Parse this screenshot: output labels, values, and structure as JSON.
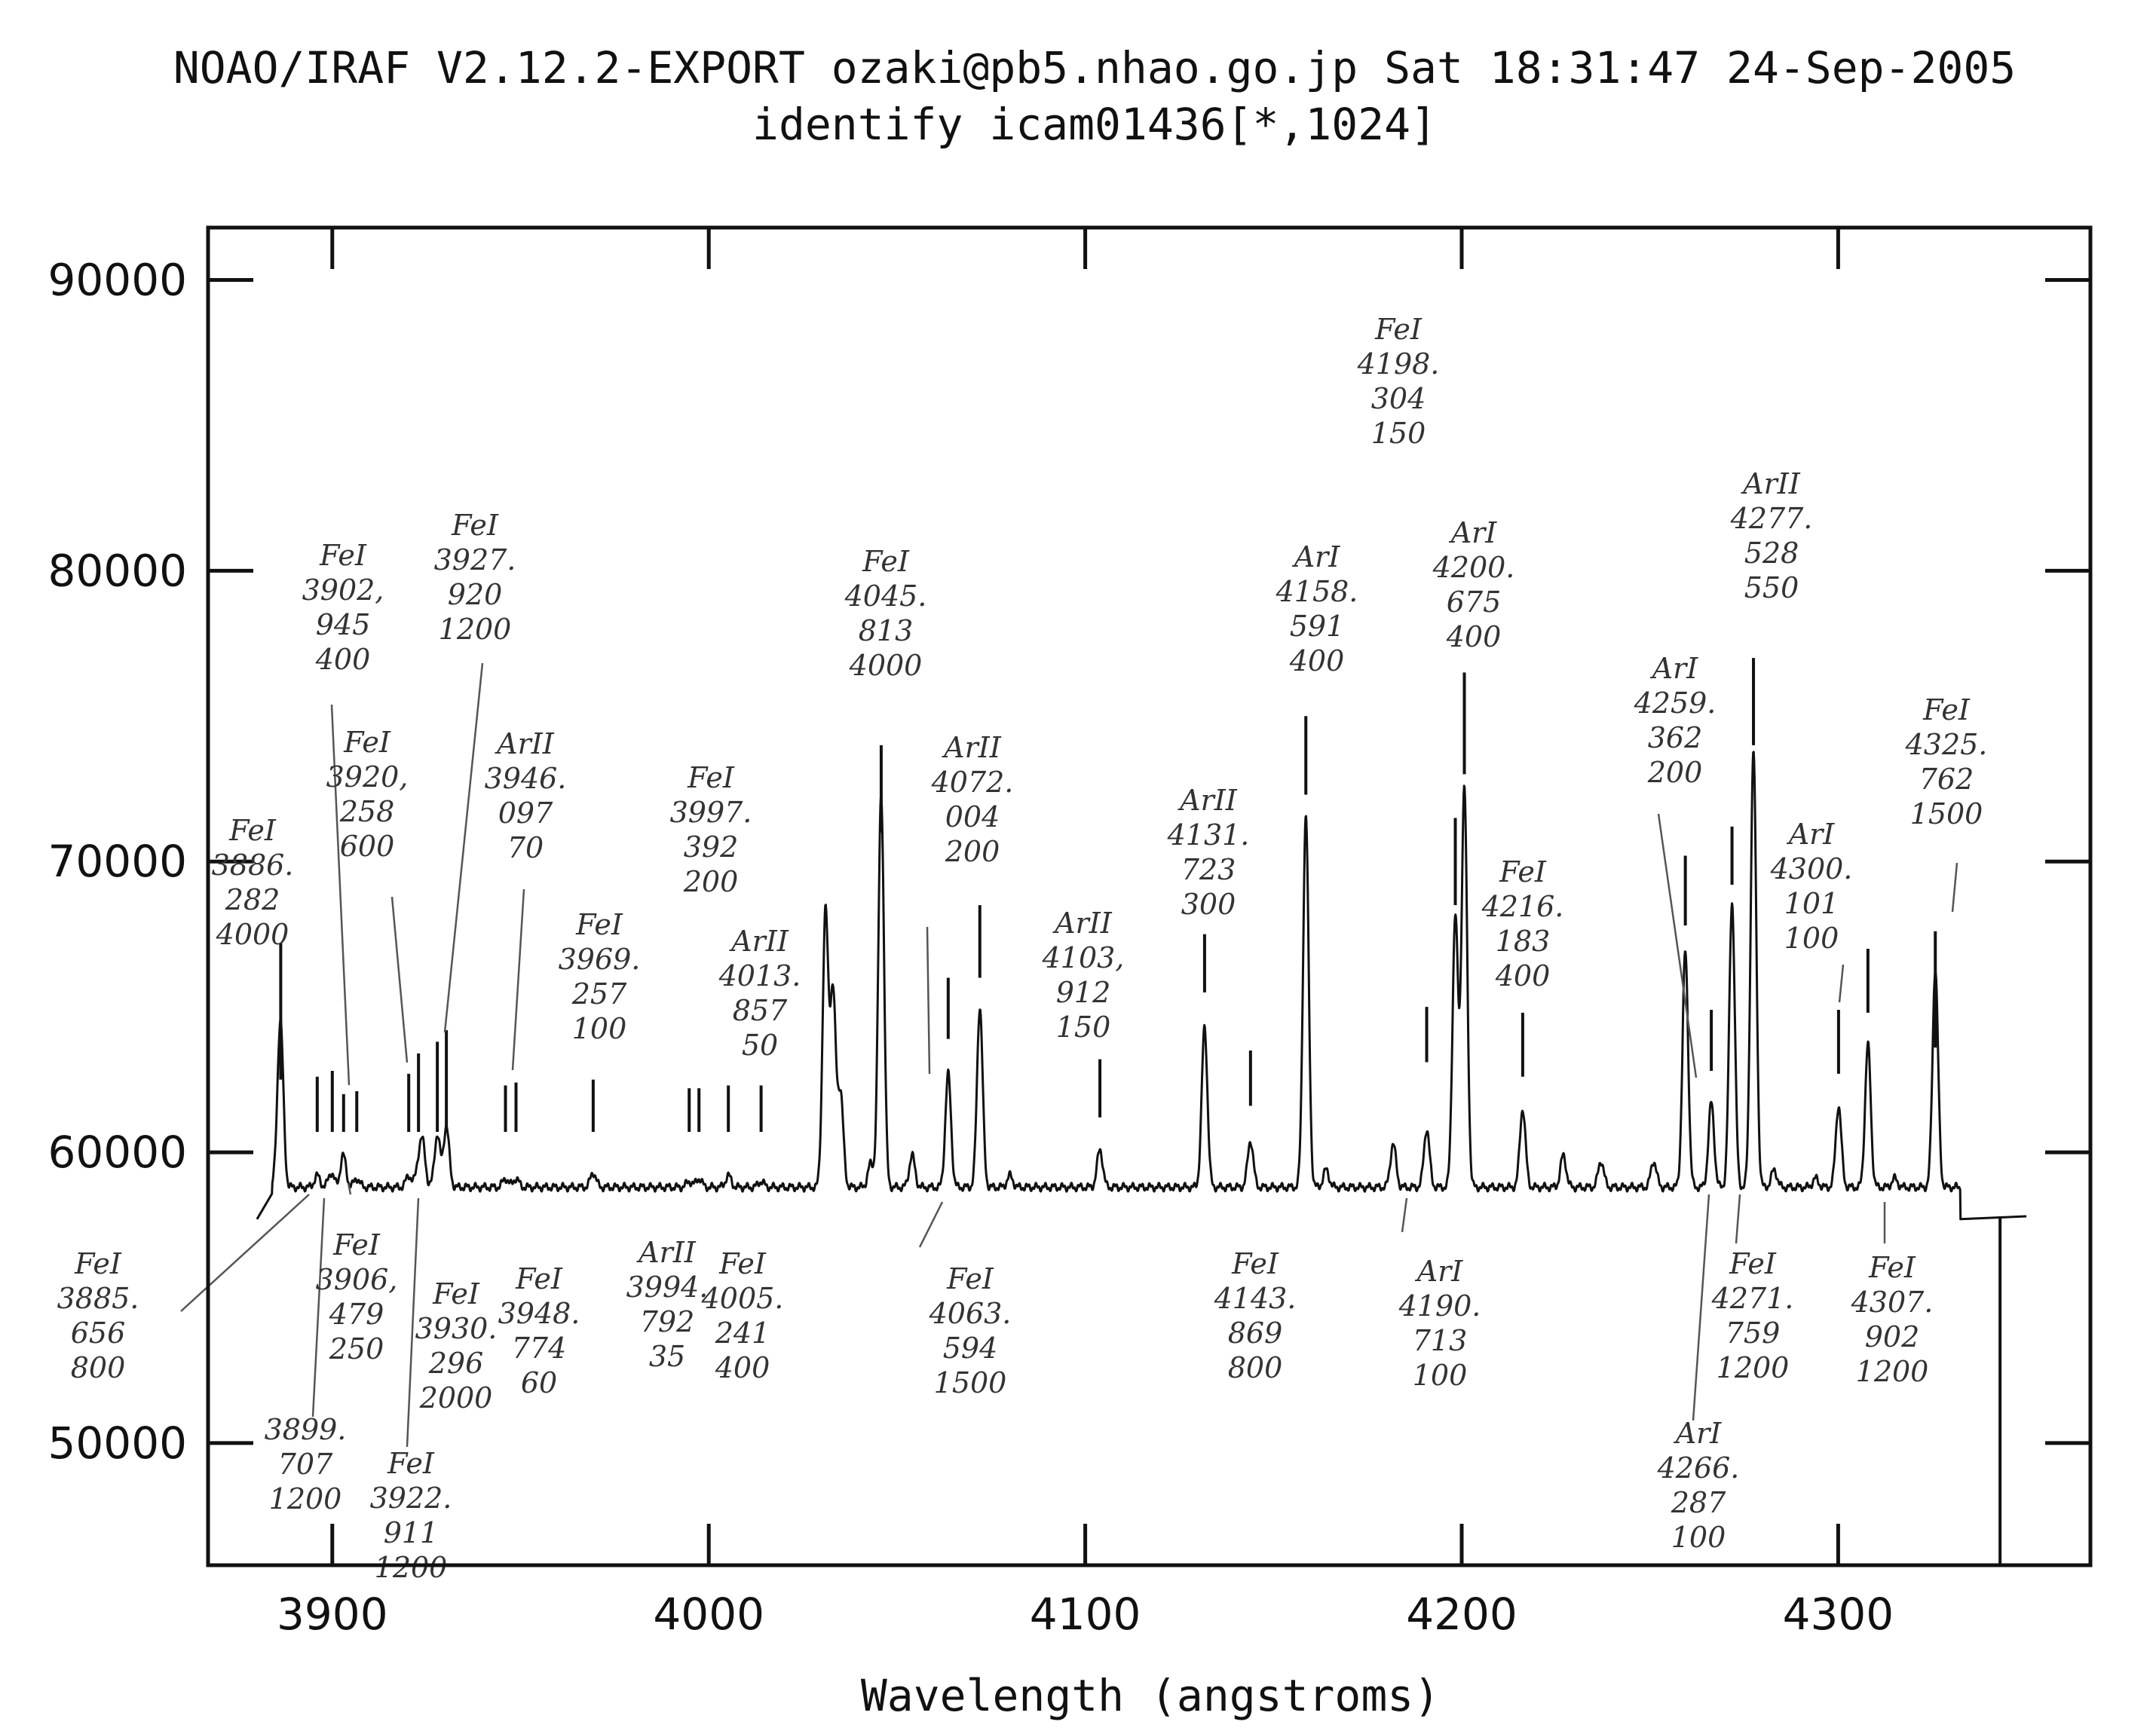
{
  "header": {
    "line1": "NOAO/IRAF V2.12.2-EXPORT ozaki@pb5.nhao.go.jp Sat 18:31:47 24-Sep-2005",
    "line2": "identify icam01436[*,1024]"
  },
  "chart_data": {
    "type": "line",
    "title": "",
    "xlabel": "Wavelength (angstroms)",
    "ylabel": "",
    "xlim": [
      3867,
      4367
    ],
    "ylim": [
      45800,
      91800
    ],
    "x_ticks": [
      3900,
      4000,
      4100,
      4200,
      4300
    ],
    "x_tick_labels": [
      "3900",
      "4000",
      "4100",
      "4200",
      "4300"
    ],
    "y_ticks": [
      50000,
      60000,
      70000,
      80000,
      90000
    ],
    "y_tick_labels": [
      "50000",
      "60000",
      "70000",
      "80000",
      "90000"
    ],
    "grid": false,
    "legend": "none",
    "color": "#111111",
    "series": [
      {
        "range": [
          3880,
          4350
        ],
        "baseline": 58800,
        "peaks": [
          [
            3885.7,
            1100
          ],
          [
            3886.3,
            4900
          ],
          [
            3896,
            400
          ],
          [
            3899.7,
            500
          ],
          [
            3902.9,
            1100
          ],
          [
            3906.5,
            300
          ],
          [
            3920.3,
            400
          ],
          [
            3922.9,
            700
          ],
          [
            3924,
            1400
          ],
          [
            3927.9,
            1800
          ],
          [
            3930.3,
            2100
          ],
          [
            3946,
            300
          ],
          [
            3948.8,
            300
          ],
          [
            3969.3,
            500
          ],
          [
            3994.8,
            200
          ],
          [
            3997.4,
            300
          ],
          [
            4005.2,
            400
          ],
          [
            4013.9,
            200
          ],
          [
            4031,
            9400
          ],
          [
            4033,
            6600
          ],
          [
            4035,
            3200
          ],
          [
            4043,
            800
          ],
          [
            4045.8,
            13500
          ],
          [
            4054,
            1100
          ],
          [
            4063.6,
            3900
          ],
          [
            4072,
            6200
          ],
          [
            4080,
            400
          ],
          [
            4103.9,
            1300
          ],
          [
            4131.7,
            5500
          ],
          [
            4143.9,
            1600
          ],
          [
            4158.6,
            12800
          ],
          [
            4164,
            600
          ],
          [
            4181.8,
            1500
          ],
          [
            4190.7,
            2000
          ],
          [
            4198.3,
            9300
          ],
          [
            4200.7,
            13700
          ],
          [
            4216.2,
            2700
          ],
          [
            4227,
            1100
          ],
          [
            4237,
            900
          ],
          [
            4251,
            900
          ],
          [
            4259.4,
            8100
          ],
          [
            4266.3,
            2900
          ],
          [
            4271.8,
            9800
          ],
          [
            4277.5,
            15000
          ],
          [
            4283,
            600
          ],
          [
            4294,
            300
          ],
          [
            4300.1,
            2800
          ],
          [
            4307.9,
            4900
          ],
          [
            4315,
            300
          ],
          [
            4325.8,
            7500
          ]
        ],
        "steps": [
          {
            "x": 3880,
            "y": 57700
          },
          {
            "x": 4332.5,
            "y": 57700
          },
          {
            "x": 4350,
            "y": 57800
          }
        ]
      }
    ],
    "marks": [
      {
        "x": 3886.3,
        "y_bottom": 62500,
        "y_top": 67200
      },
      {
        "x": 3896,
        "y_bottom": 60700,
        "y_top": 62600
      },
      {
        "x": 3900,
        "y_bottom": 60700,
        "y_top": 62800
      },
      {
        "x": 3903,
        "y_bottom": 60700,
        "y_top": 62000
      },
      {
        "x": 3906.5,
        "y_bottom": 60700,
        "y_top": 62100
      },
      {
        "x": 3920.3,
        "y_bottom": 60700,
        "y_top": 62700
      },
      {
        "x": 3922.9,
        "y_bottom": 60700,
        "y_top": 63400
      },
      {
        "x": 3927.9,
        "y_bottom": 60700,
        "y_top": 63800
      },
      {
        "x": 3930.3,
        "y_bottom": 60700,
        "y_top": 64200
      },
      {
        "x": 3946,
        "y_bottom": 60700,
        "y_top": 62300
      },
      {
        "x": 3948.8,
        "y_bottom": 60700,
        "y_top": 62400
      },
      {
        "x": 3969.3,
        "y_bottom": 60700,
        "y_top": 62500
      },
      {
        "x": 3994.8,
        "y_bottom": 60700,
        "y_top": 62200
      },
      {
        "x": 3997.4,
        "y_bottom": 60700,
        "y_top": 62200
      },
      {
        "x": 4005.2,
        "y_bottom": 60700,
        "y_top": 62300
      },
      {
        "x": 4013.9,
        "y_bottom": 60700,
        "y_top": 62300
      },
      {
        "x": 4045.8,
        "y_bottom": 71000,
        "y_top": 74000
      },
      {
        "x": 4063.6,
        "y_bottom": 63900,
        "y_top": 66000
      },
      {
        "x": 4072,
        "y_bottom": 66000,
        "y_top": 68500
      },
      {
        "x": 4103.9,
        "y_bottom": 61200,
        "y_top": 63200
      },
      {
        "x": 4131.7,
        "y_bottom": 65500,
        "y_top": 67500
      },
      {
        "x": 4143.9,
        "y_bottom": 61600,
        "y_top": 63500
      },
      {
        "x": 4158.6,
        "y_bottom": 72300,
        "y_top": 75000
      },
      {
        "x": 4190.7,
        "y_bottom": 63100,
        "y_top": 65000
      },
      {
        "x": 4198.3,
        "y_bottom": 68500,
        "y_top": 71500
      },
      {
        "x": 4200.7,
        "y_bottom": 73000,
        "y_top": 76500
      },
      {
        "x": 4216.2,
        "y_bottom": 62600,
        "y_top": 64800
      },
      {
        "x": 4259.4,
        "y_bottom": 67800,
        "y_top": 70200
      },
      {
        "x": 4266.3,
        "y_bottom": 62800,
        "y_top": 64900
      },
      {
        "x": 4271.8,
        "y_bottom": 69200,
        "y_top": 71200
      },
      {
        "x": 4277.5,
        "y_bottom": 74000,
        "y_top": 77000
      },
      {
        "x": 4300.1,
        "y_bottom": 62700,
        "y_top": 64900
      },
      {
        "x": 4307.9,
        "y_bottom": 64800,
        "y_top": 67000
      },
      {
        "x": 4325.8,
        "y_bottom": 63600,
        "y_top": 67600
      }
    ],
    "annotations": [
      {
        "text": "FeI 3886. 282 4000",
        "lines": [
          "FeI",
          "3886.",
          "282",
          "4000"
        ]
      },
      {
        "text": "FeI 3902. 945 400",
        "lines": [
          "FeI",
          "3902,",
          "945",
          "400"
        ]
      },
      {
        "text": "FeI 3920. 258 600",
        "lines": [
          "FeI",
          "3920,",
          "258",
          "600"
        ]
      },
      {
        "text": "FeI 3927. 920 1200",
        "lines": [
          "FeI",
          "3927.",
          "920",
          "1200"
        ]
      },
      {
        "text": "ArII 3946. 097 70",
        "lines": [
          "ArII",
          "3946.",
          "097",
          "70"
        ]
      },
      {
        "text": "FeI 3969. 257 100",
        "lines": [
          "FeI",
          "3969.",
          "257",
          "100"
        ]
      },
      {
        "text": "FeI 3997. 392 200",
        "lines": [
          "FeI",
          "3997.",
          "392",
          "200"
        ]
      },
      {
        "text": "ArII 4013. 857 50",
        "lines": [
          "ArII",
          "4013.",
          "857",
          "50"
        ]
      },
      {
        "text": "FeI 4045. 813 4000",
        "lines": [
          "FeI",
          "4045.",
          "813",
          "4000"
        ]
      },
      {
        "text": "ArII 4072. 004 200",
        "lines": [
          "ArII",
          "4072.",
          "004",
          "200"
        ]
      },
      {
        "text": "ArII 4103. 912 150",
        "lines": [
          "ArII",
          "4103,",
          "912",
          "150"
        ]
      },
      {
        "text": "ArII 4131. 723 300",
        "lines": [
          "ArII",
          "4131.",
          "723",
          "300"
        ]
      },
      {
        "text": "ArI 4158. 591 400",
        "lines": [
          "ArI",
          "4158.",
          "591",
          "400"
        ]
      },
      {
        "text": "FeI 4198. 304 150",
        "lines": [
          "FeI",
          "4198.",
          "304",
          "150"
        ]
      },
      {
        "text": "ArI 4200. 675 400",
        "lines": [
          "ArI",
          "4200.",
          "675",
          "400"
        ]
      },
      {
        "text": "FeI 4216. 183 400",
        "lines": [
          "FeI",
          "4216.",
          "183",
          "400"
        ]
      },
      {
        "text": "ArI 4259. 362 200",
        "lines": [
          "ArI",
          "4259.",
          "362",
          "200"
        ]
      },
      {
        "text": "ArII 4277. 528 550",
        "lines": [
          "ArII",
          "4277.",
          "528",
          "550"
        ]
      },
      {
        "text": "ArI 4300. 101 100",
        "lines": [
          "ArI",
          "4300.",
          "101",
          "100"
        ]
      },
      {
        "text": "FeI 4325. 762 1500",
        "lines": [
          "FeI",
          "4325.",
          "762",
          "1500"
        ]
      },
      {
        "text": "FeI 3885. 656 800",
        "lines": [
          "FeI",
          "3885.",
          "656",
          "800"
        ]
      },
      {
        "text": "3899. 707 1200",
        "lines": [
          "3899.",
          "707",
          "1200"
        ]
      },
      {
        "text": "FeI 3906. 479 250",
        "lines": [
          "FeI",
          "3906,",
          "479",
          "250"
        ]
      },
      {
        "text": "FeI 3922. 911 1200",
        "lines": [
          "FeI",
          "3922.",
          "911",
          "1200"
        ]
      },
      {
        "text": "FeI 3930. 296 2000",
        "lines": [
          "FeI",
          "3930.",
          "296",
          "2000"
        ]
      },
      {
        "text": "FeI 3948. 774 60",
        "lines": [
          "FeI",
          "3948.",
          "774",
          "60"
        ]
      },
      {
        "text": "ArII 3994. 792 35",
        "lines": [
          "ArII",
          "3994.",
          "792",
          "35"
        ]
      },
      {
        "text": "FeI 4005. 241 400",
        "lines": [
          "FeI",
          "4005.",
          "241",
          "400"
        ]
      },
      {
        "text": "FeI 4063. 594 1500",
        "lines": [
          "FeI",
          "4063.",
          "594",
          "1500"
        ]
      },
      {
        "text": "FeI 4143. 869 800",
        "lines": [
          "FeI",
          "4143.",
          "869",
          "800"
        ]
      },
      {
        "text": "ArI 4190. 713 100",
        "lines": [
          "ArI",
          "4190.",
          "713",
          "100"
        ]
      },
      {
        "text": "ArI 4266. 287 100",
        "lines": [
          "ArI",
          "4266.",
          "287",
          "100"
        ]
      },
      {
        "text": "FeI 4271. 759 1200",
        "lines": [
          "FeI",
          "4271.",
          "759",
          "1200"
        ]
      },
      {
        "text": "FeI 4307. 902 1200",
        "lines": [
          "FeI",
          "4307.",
          "902",
          "1200"
        ]
      }
    ]
  }
}
